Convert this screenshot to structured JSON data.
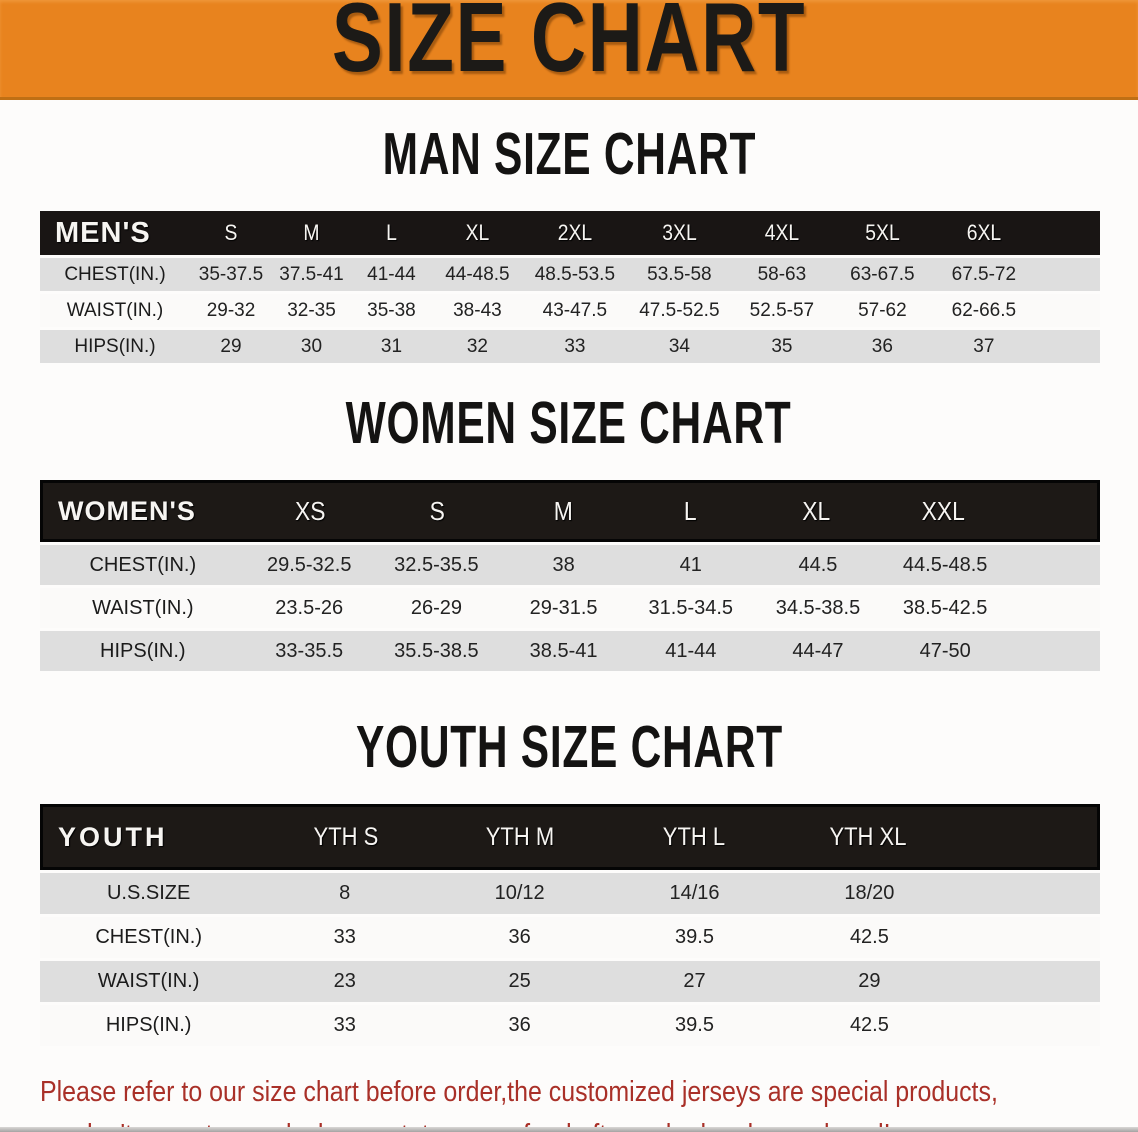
{
  "banner": {
    "title": "SIZE CHART"
  },
  "tables": [
    {
      "id": "mens",
      "heading": "MAN SIZE CHART",
      "corner_label": "MEN'S",
      "columns": [
        "S",
        "M",
        "L",
        "XL",
        "2XL",
        "3XL",
        "4XL",
        "5XL",
        "6XL"
      ],
      "rows": [
        {
          "label": "CHEST(IN.)",
          "values": [
            "35-37.5",
            "37.5-41",
            "41-44",
            "44-48.5",
            "48.5-53.5",
            "53.5-58",
            "58-63",
            "63-67.5",
            "67.5-72"
          ]
        },
        {
          "label": "WAIST(IN.)",
          "values": [
            "29-32",
            "32-35",
            "35-38",
            "38-43",
            "43-47.5",
            "47.5-52.5",
            "52.5-57",
            "57-62",
            "62-66.5"
          ]
        },
        {
          "label": "HIPS(IN.)",
          "values": [
            "29",
            "30",
            "31",
            "32",
            "33",
            "34",
            "35",
            "36",
            "37"
          ]
        }
      ]
    },
    {
      "id": "womens",
      "heading": "WOMEN SIZE CHART",
      "corner_label": "WOMEN'S",
      "columns": [
        "XS",
        "S",
        "M",
        "L",
        "XL",
        "XXL"
      ],
      "rows": [
        {
          "label": "CHEST(IN.)",
          "values": [
            "29.5-32.5",
            "32.5-35.5",
            "38",
            "41",
            "44.5",
            "44.5-48.5"
          ]
        },
        {
          "label": "WAIST(IN.)",
          "values": [
            "23.5-26",
            "26-29",
            "29-31.5",
            "31.5-34.5",
            "34.5-38.5",
            "38.5-42.5"
          ]
        },
        {
          "label": "HIPS(IN.)",
          "values": [
            "33-35.5",
            "35.5-38.5",
            "38.5-41",
            "41-44",
            "44-47",
            "47-50"
          ]
        }
      ]
    },
    {
      "id": "youth",
      "heading": "YOUTH SIZE CHART",
      "corner_label": "YOUTH",
      "columns": [
        "YTH S",
        "YTH M",
        "YTH L",
        "YTH XL"
      ],
      "rows": [
        {
          "label": "U.S.SIZE",
          "values": [
            "8",
            "10/12",
            "14/16",
            "18/20"
          ]
        },
        {
          "label": "CHEST(IN.)",
          "values": [
            "33",
            "36",
            "39.5",
            "42.5"
          ]
        },
        {
          "label": "WAIST(IN.)",
          "values": [
            "23",
            "25",
            "27",
            "29"
          ]
        },
        {
          "label": "HIPS(IN.)",
          "values": [
            "33",
            "36",
            "39.5",
            "42.5"
          ]
        }
      ]
    }
  ],
  "footer": {
    "line1": "Please refer to our size chart before order,the customized jerseys are special products,",
    "line2": "we don't accept cancel, change, teturn or refund after order has been placed!"
  },
  "colors": {
    "banner_bg": "#E8831E",
    "bar_bg": "#191514",
    "row_gray": "#DEDEDE",
    "row_white": "#FBFAF9",
    "note_red": "#A93028",
    "page_bg": "#FDFCFB"
  }
}
